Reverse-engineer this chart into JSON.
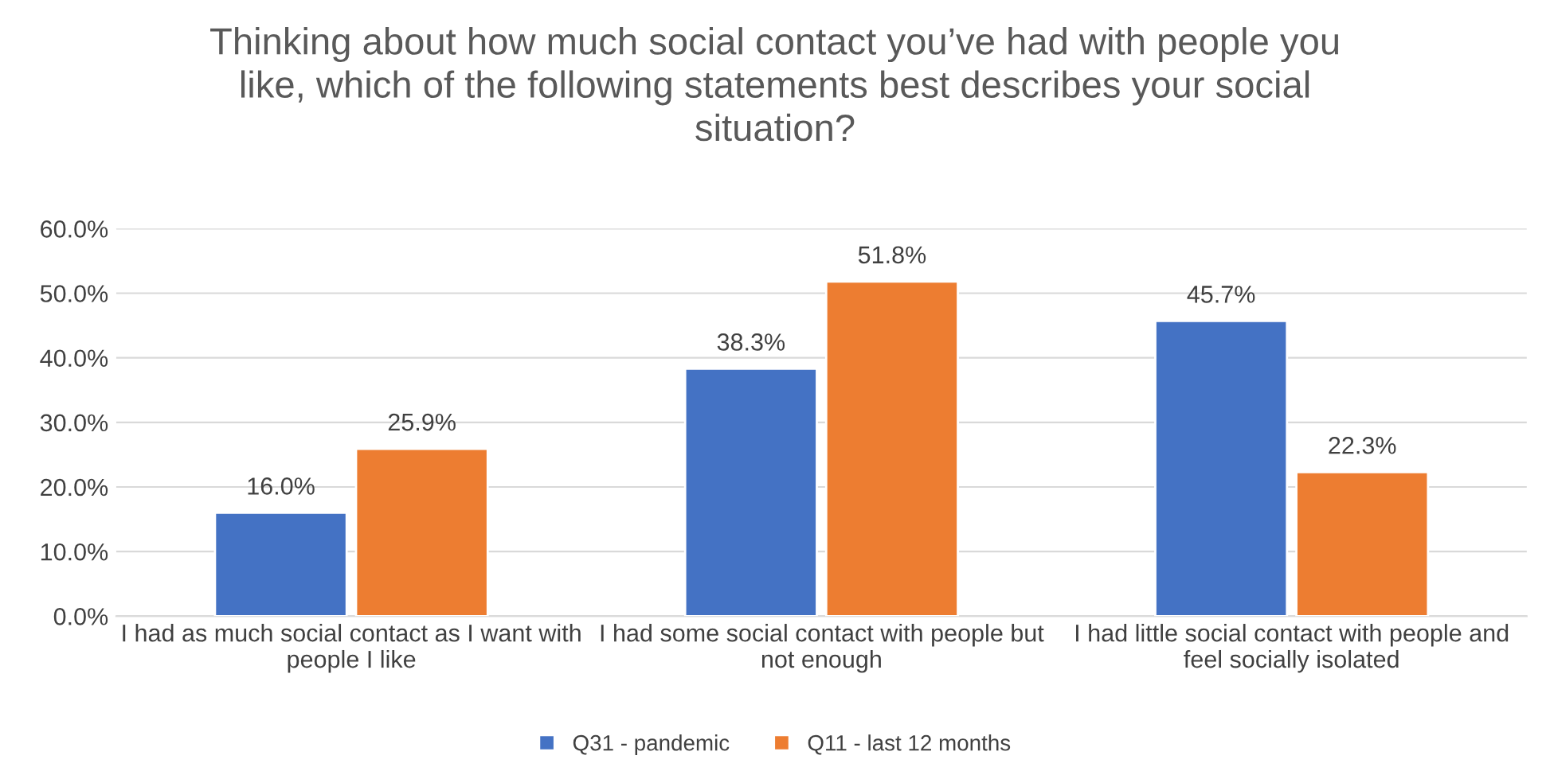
{
  "chart_data": {
    "type": "bar",
    "title": "Thinking about how much social contact you’ve had with people you like, which of the following statements best describes your social situation?",
    "categories": [
      "I had as much social contact as I want with people I like",
      "I had some social contact with people but not enough",
      "I had little social contact with people and feel socially isolated"
    ],
    "series": [
      {
        "name": "Q31 - pandemic",
        "color": "#4472c4",
        "values": [
          16.0,
          38.3,
          45.7
        ],
        "value_labels": [
          "16.0%",
          "38.3%",
          "45.7%"
        ]
      },
      {
        "name": "Q11 - last 12 months",
        "color": "#ed7d31",
        "values": [
          25.9,
          51.8,
          22.3
        ],
        "value_labels": [
          "25.9%",
          "51.8%",
          "22.3%"
        ]
      }
    ],
    "ylim": [
      0,
      60
    ],
    "yticks": [
      {
        "value": 0,
        "label": "0.0%"
      },
      {
        "value": 10,
        "label": "10.0%"
      },
      {
        "value": 20,
        "label": "20.0%"
      },
      {
        "value": 30,
        "label": "30.0%"
      },
      {
        "value": 40,
        "label": "40.0%"
      },
      {
        "value": 50,
        "label": "50.0%"
      },
      {
        "value": 60,
        "label": "60.0%"
      }
    ],
    "grid": "y",
    "legend": "bottom"
  }
}
